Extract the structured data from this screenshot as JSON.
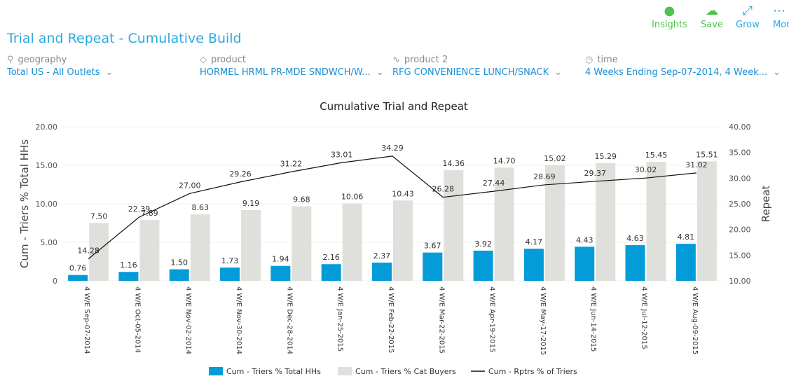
{
  "toolbar": {
    "insights": "Insights",
    "save": "Save",
    "grow": "Grow",
    "more": "More"
  },
  "colors": {
    "accent": "#29a9e0",
    "toolbar_green": "#4cc44c",
    "blue_bar": "#039cd9",
    "gray_bar": "#dfdfdb",
    "line": "#111111"
  },
  "title": "Trial and Repeat - Cumulative Build",
  "filters": [
    {
      "icon": "map-pin-icon",
      "label": "geography",
      "value": "Total US - All Outlets"
    },
    {
      "icon": "tag-icon",
      "label": "product",
      "value": "HORMEL HRML PR-MDE SNDWCH/W..."
    },
    {
      "icon": "pulse-icon",
      "label": "product 2",
      "value": "RFG CONVENIENCE LUNCH/SNACK"
    },
    {
      "icon": "clock-icon",
      "label": "time",
      "value": "4 Weeks Ending Sep-07-2014, 4 Week..."
    }
  ],
  "chart_data": {
    "type": "bar",
    "title": "Cumulative Trial and Repeat",
    "ylabel": "Cum - Triers % Total HHs",
    "y2label": "Repeat",
    "ylim": [
      0,
      20
    ],
    "y2lim": [
      10,
      40
    ],
    "yticks": [
      "0",
      "5.00",
      "10.00",
      "15.00",
      "20.00"
    ],
    "y2ticks": [
      "10.00",
      "15.00",
      "20.00",
      "25.00",
      "30.00",
      "35.00",
      "40.00"
    ],
    "grid": true,
    "legend": "bottom",
    "categories": [
      "4 W/E Sep-07-2014",
      "4 W/E Oct-05-2014",
      "4 W/E Nov-02-2014",
      "4 W/E Nov-30-2014",
      "4 W/E Dec-28-2014",
      "4 W/E Jan-25-2015",
      "4 W/E Feb-22-2015",
      "4 W/E Mar-22-2015",
      "4 W/E Apr-19-2015",
      "4 W/E May-17-2015",
      "4 W/E Jun-14-2015",
      "4 W/E Jul-12-2015",
      "4 W/E Aug-09-2015"
    ],
    "series": [
      {
        "name": "Cum - Triers % Total HHs",
        "type": "bar",
        "axis": "left",
        "values": [
          0.76,
          1.16,
          1.5,
          1.73,
          1.94,
          2.16,
          2.37,
          3.67,
          3.92,
          4.17,
          4.43,
          4.63,
          4.81
        ]
      },
      {
        "name": "Cum - Triers % Cat Buyers",
        "type": "bar",
        "axis": "left",
        "values": [
          7.5,
          7.89,
          8.63,
          9.19,
          9.68,
          10.06,
          10.43,
          14.36,
          14.7,
          15.02,
          15.29,
          15.45,
          15.51
        ]
      },
      {
        "name": "Cum - Rptrs % of Triers",
        "type": "line",
        "axis": "right",
        "values": [
          14.28,
          22.39,
          27.0,
          29.26,
          31.22,
          33.01,
          34.29,
          26.28,
          27.44,
          28.69,
          29.37,
          30.02,
          31.02
        ]
      }
    ]
  }
}
